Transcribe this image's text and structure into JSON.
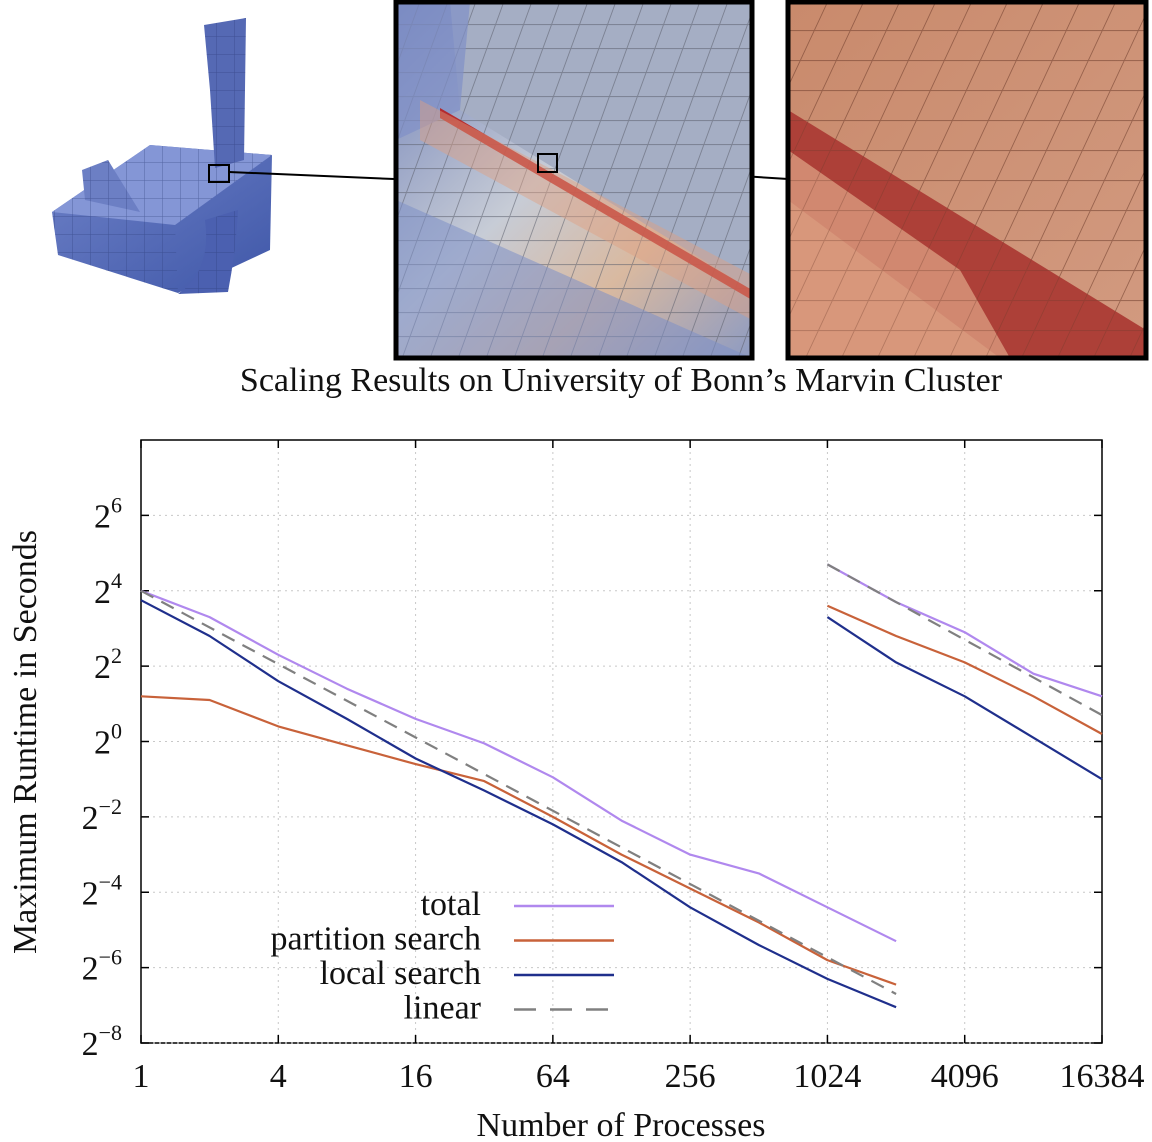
{
  "title": "Scaling Results on University of Bonn’s Marvin Cluster",
  "chart_data": {
    "type": "line",
    "log_base_x": 2,
    "log_base_y": 2,
    "xlabel": "Number of Processes",
    "ylabel": "Maximum Runtime in Seconds",
    "x_ticks": [
      1,
      4,
      16,
      64,
      256,
      1024,
      4096,
      16384
    ],
    "x_tick_labels": [
      "1",
      "4",
      "16",
      "64",
      "256",
      "1024",
      "4096",
      "16384"
    ],
    "y_ticks_exp": [
      -8,
      -6,
      -4,
      -2,
      0,
      2,
      4,
      6
    ],
    "xlim": [
      1,
      16384
    ],
    "ylim_exp": [
      -8,
      8
    ],
    "grid": true,
    "legend_position": "bottom-left",
    "series": [
      {
        "name": "total",
        "color": "#b088ee",
        "dash": false,
        "segments": [
          {
            "x": [
              1,
              2,
              4,
              8,
              16,
              32,
              64,
              128,
              256,
              512,
              1024,
              2048
            ],
            "y_exp": [
              4.0,
              3.3,
              2.3,
              1.4,
              0.6,
              -0.05,
              -0.95,
              -2.1,
              -3.0,
              -3.5,
              -4.4,
              -5.3
            ]
          },
          {
            "x": [
              1024,
              2048,
              4096,
              8192,
              16384
            ],
            "y_exp": [
              4.7,
              3.7,
              2.9,
              1.8,
              1.2
            ]
          }
        ]
      },
      {
        "name": "partition search",
        "color": "#c8623a",
        "dash": false,
        "segments": [
          {
            "x": [
              1,
              2,
              4,
              8,
              16,
              32,
              64,
              128,
              256,
              512,
              1024,
              2048
            ],
            "y_exp": [
              1.2,
              1.1,
              0.4,
              -0.1,
              -0.6,
              -1.05,
              -2.0,
              -3.0,
              -3.9,
              -4.8,
              -5.8,
              -6.45
            ]
          },
          {
            "x": [
              1024,
              2048,
              4096,
              8192,
              16384
            ],
            "y_exp": [
              3.6,
              2.8,
              2.1,
              1.2,
              0.2
            ]
          }
        ]
      },
      {
        "name": "local search",
        "color": "#1f2f8c",
        "dash": false,
        "segments": [
          {
            "x": [
              1,
              2,
              4,
              8,
              16,
              32,
              64,
              128,
              256,
              512,
              1024,
              2048
            ],
            "y_exp": [
              3.75,
              2.8,
              1.6,
              0.6,
              -0.45,
              -1.3,
              -2.2,
              -3.2,
              -4.4,
              -5.4,
              -6.3,
              -7.05
            ]
          },
          {
            "x": [
              1024,
              2048,
              4096,
              8192,
              16384
            ],
            "y_exp": [
              3.3,
              2.1,
              1.2,
              0.1,
              -1.0
            ]
          }
        ]
      },
      {
        "name": "linear",
        "color": "#808080",
        "dash": true,
        "segments": [
          {
            "x": [
              1,
              2048
            ],
            "y_exp": [
              4.0,
              -6.7
            ]
          },
          {
            "x": [
              1024,
              16384
            ],
            "y_exp": [
              4.7,
              0.7
            ]
          }
        ]
      }
    ]
  },
  "images": {
    "mesh_overview": "mesh-overview",
    "zoom1": "zoom-level-1",
    "zoom2": "zoom-level-2"
  }
}
